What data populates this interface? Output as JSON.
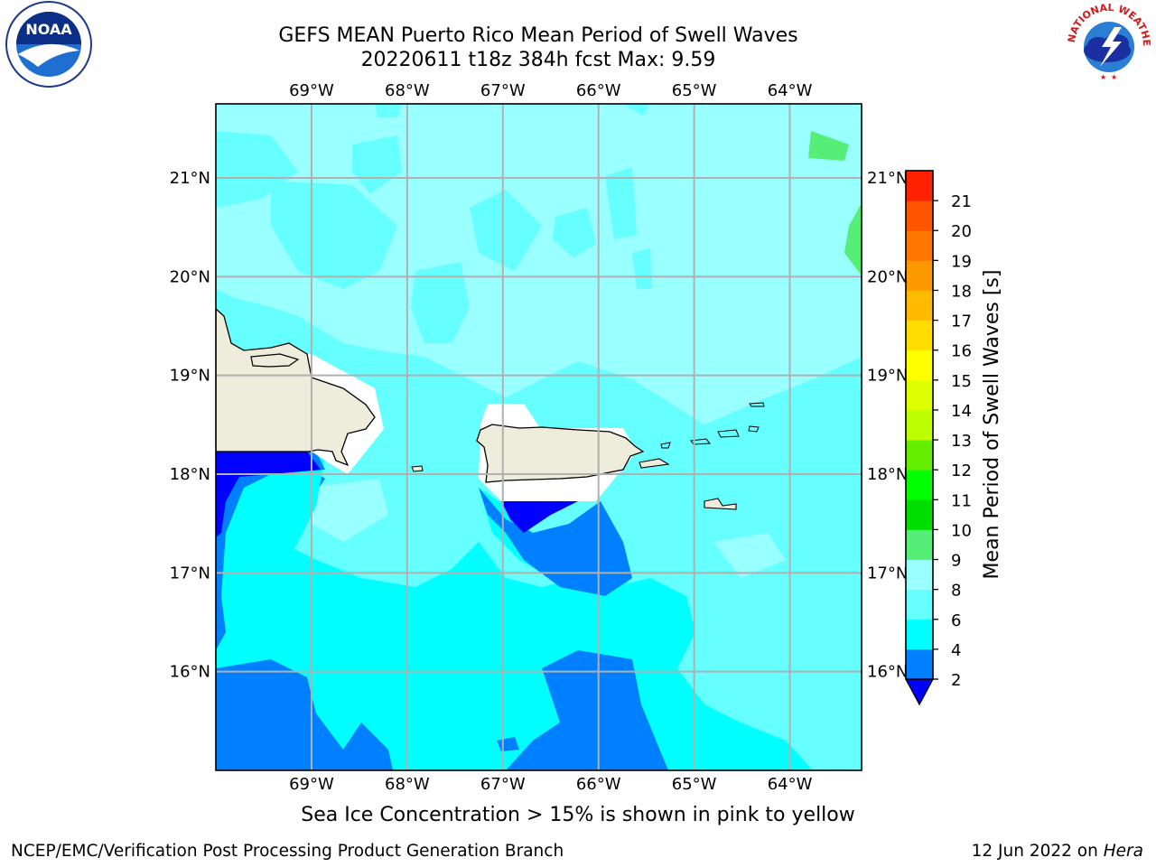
{
  "header": {
    "title_line1": "GEFS MEAN Puerto Rico Mean Period of Swell Waves",
    "title_line2": "20220611 t18z 384h fcst   Max: 9.59"
  },
  "map": {
    "lon_ticks": [
      "69°W",
      "68°W",
      "67°W",
      "66°W",
      "65°W",
      "64°W"
    ],
    "lat_ticks": [
      "21°N",
      "20°N",
      "19°N",
      "18°N",
      "17°N",
      "16°N"
    ],
    "lon_range": [
      -70,
      -63.25
    ],
    "lat_range": [
      15,
      21.75
    ],
    "land_color": "#eeecda",
    "grid_color": "#b0b0b0"
  },
  "colorbar": {
    "label": "Mean Period of Swell Waves [s]",
    "tick_labels": [
      "2",
      "4",
      "6",
      "8",
      "9",
      "10",
      "11",
      "12",
      "13",
      "14",
      "15",
      "16",
      "17",
      "18",
      "19",
      "20",
      "21"
    ],
    "colors": [
      "#0000ff",
      "#0080ff",
      "#00ffff",
      "#66ffff",
      "#99ffff",
      "#55ee77",
      "#00dd00",
      "#00ff00",
      "#66ee00",
      "#bbff00",
      "#ddff00",
      "#ffff00",
      "#ffdd00",
      "#ffbb00",
      "#ff9900",
      "#ff7700",
      "#ff5500",
      "#ff2200"
    ],
    "extend_color": "#0000ff"
  },
  "note": {
    "ice_text": "Sea Ice Concentration > 15% is shown in pink to yellow"
  },
  "footer": {
    "left": "NCEP/EMC/Verification Post Processing Product Generation Branch",
    "date": "12 Jun 2022 on ",
    "host": "Hera"
  },
  "logos": {
    "noaa_text": "NOAA",
    "nws_text": "NATIONAL WEATHER SERVICE"
  }
}
